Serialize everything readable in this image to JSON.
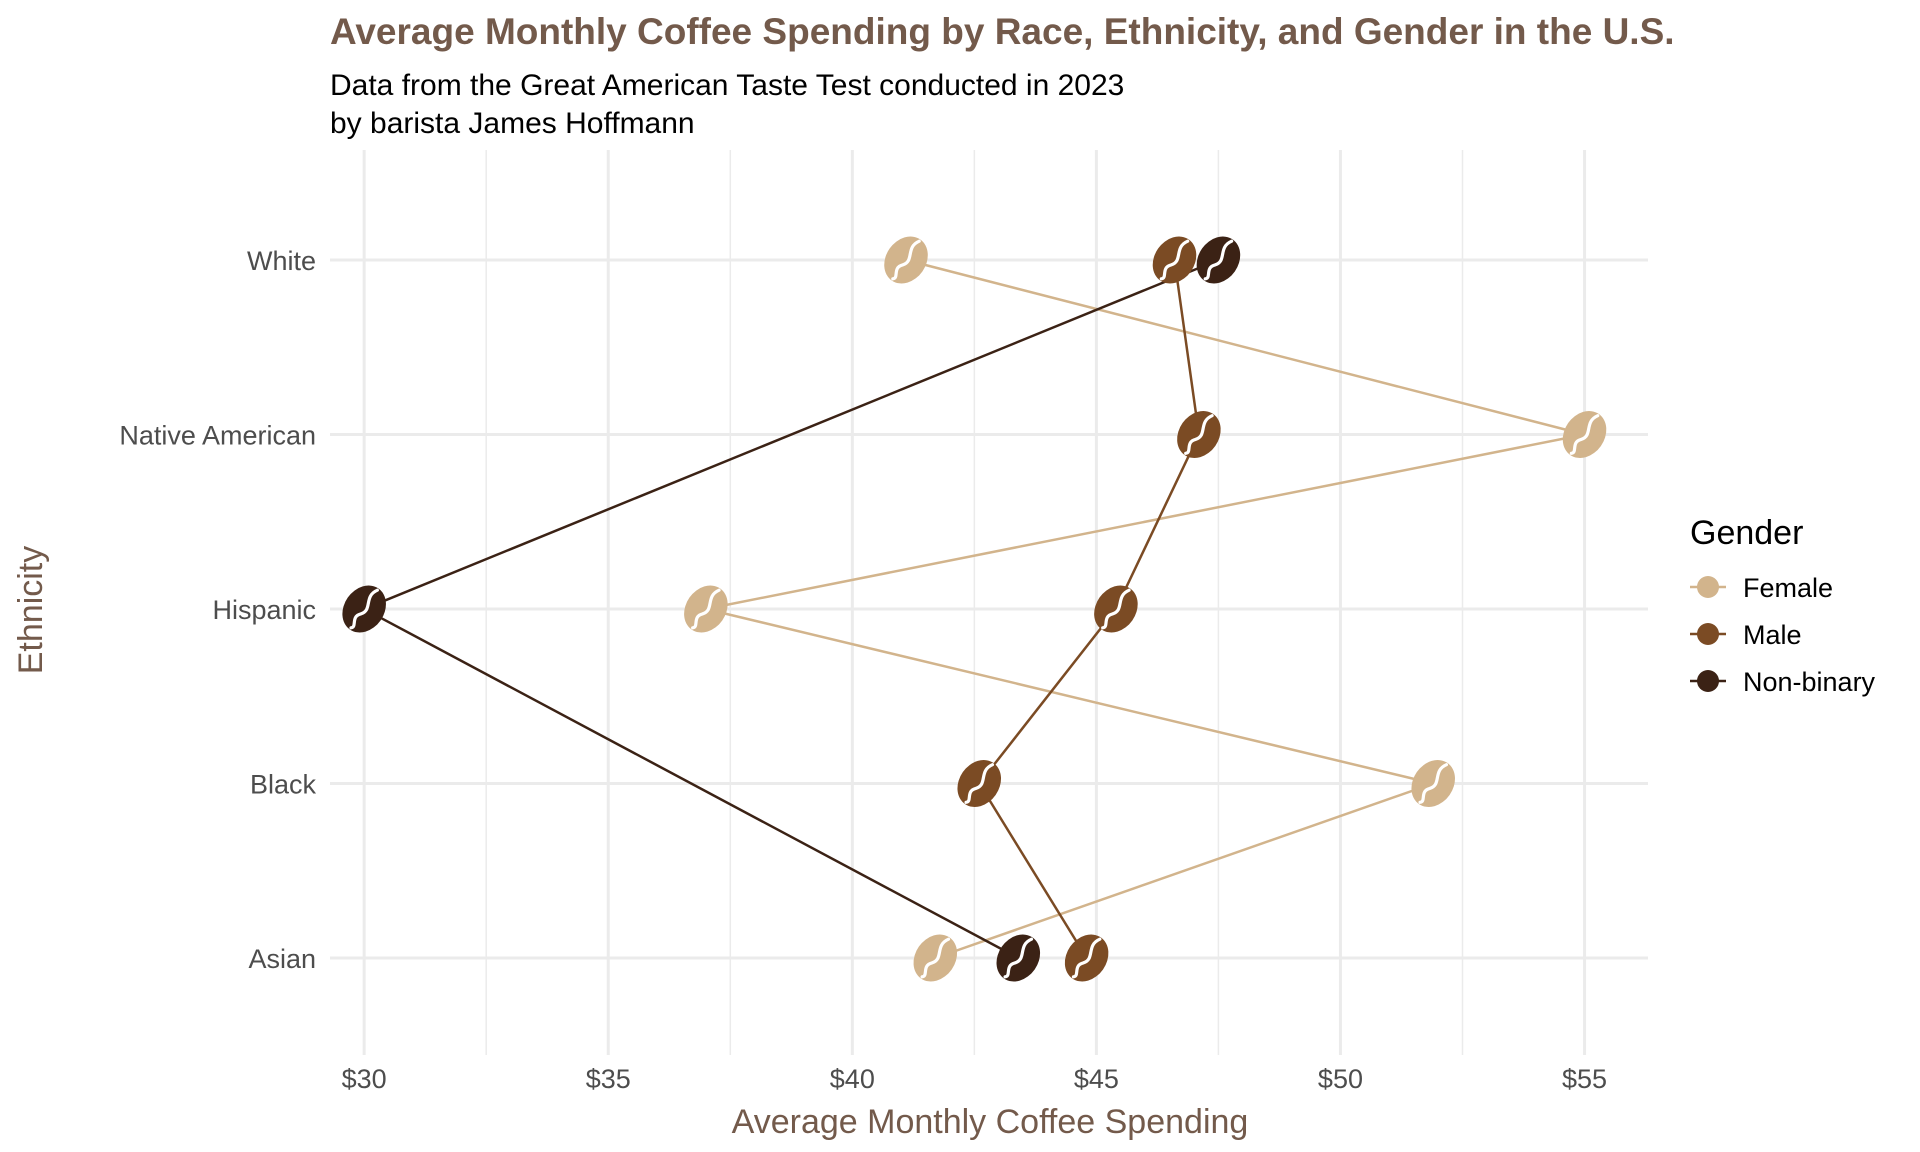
{
  "colors": {
    "accent": "#735a4b",
    "Female": "#d2b48c",
    "Male": "#7b4b24",
    "Non-binary": "#3b2215",
    "grid": "#ebebeb"
  },
  "chart_data": {
    "type": "scatter",
    "title": "Average Monthly Coffee Spending by Race, Ethnicity, and Gender in the U.S.",
    "subtitle": [
      "Data from the Great American Taste Test conducted in 2023",
      "by barista James Hoffmann"
    ],
    "xlabel": "Average Monthly Coffee Spending",
    "ylabel": "Ethnicity",
    "xlim": [
      29.3,
      56.3
    ],
    "x_ticks": [
      30,
      35,
      40,
      45,
      50,
      55
    ],
    "x_tick_labels": [
      "$30",
      "$35",
      "$40",
      "$45",
      "$50",
      "$55"
    ],
    "categories": [
      "Asian",
      "Black",
      "Hispanic",
      "Native American",
      "White"
    ],
    "marker": "coffee-bean",
    "points_connected_in_order": true,
    "grid": true,
    "legend": {
      "title": "Gender",
      "position": "right",
      "entries": [
        "Female",
        "Male",
        "Non-binary"
      ]
    },
    "series": [
      {
        "name": "Female",
        "points": [
          {
            "ethnicity": "Asian",
            "value": 41.7
          },
          {
            "ethnicity": "Black",
            "value": 51.9
          },
          {
            "ethnicity": "Hispanic",
            "value": 37.0
          },
          {
            "ethnicity": "Native American",
            "value": 55.0
          },
          {
            "ethnicity": "White",
            "value": 41.1
          }
        ]
      },
      {
        "name": "Male",
        "points": [
          {
            "ethnicity": "Asian",
            "value": 44.8
          },
          {
            "ethnicity": "Black",
            "value": 42.6
          },
          {
            "ethnicity": "Hispanic",
            "value": 45.4
          },
          {
            "ethnicity": "Native American",
            "value": 47.1
          },
          {
            "ethnicity": "White",
            "value": 46.6
          }
        ]
      },
      {
        "name": "Non-binary",
        "points": [
          {
            "ethnicity": "Asian",
            "value": 43.4
          },
          {
            "ethnicity": "Hispanic",
            "value": 30.0
          },
          {
            "ethnicity": "White",
            "value": 47.5
          }
        ]
      }
    ]
  }
}
